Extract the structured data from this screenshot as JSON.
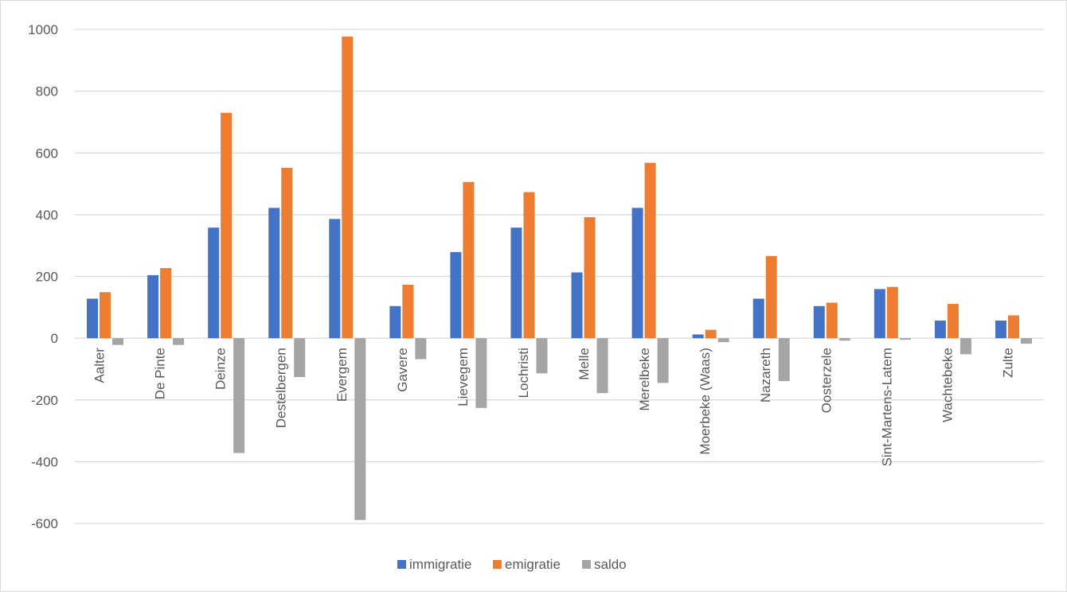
{
  "chart_data": {
    "type": "bar",
    "title": "",
    "xlabel": "",
    "ylabel": "",
    "ylim": [
      -600,
      1000
    ],
    "yticks": [
      1000,
      800,
      600,
      400,
      200,
      0,
      -200,
      -400,
      -600
    ],
    "grid": true,
    "legend_position": "bottom",
    "categories": [
      "Aalter",
      "De Pinte",
      "Deinze",
      "Destelbergen",
      "Evergem",
      "Gavere",
      "Lievegem",
      "Lochristi",
      "Melle",
      "Merelbeke",
      "Moerbeke (Waas)",
      "Nazareth",
      "Oosterzele",
      "Sint-Martens-Latem",
      "Wachtebeke",
      "Zulte"
    ],
    "series": [
      {
        "name": "immigratie",
        "color": "#4472C4",
        "values": [
          128,
          204,
          358,
          422,
          386,
          104,
          279,
          358,
          213,
          422,
          12,
          128,
          104,
          159,
          57,
          57
        ]
      },
      {
        "name": "emigratie",
        "color": "#ED7D31",
        "values": [
          149,
          227,
          730,
          552,
          977,
          173,
          506,
          473,
          392,
          568,
          27,
          266,
          115,
          166,
          111,
          74
        ]
      },
      {
        "name": "saldo",
        "color": "#A5A5A5",
        "values": [
          -22,
          -22,
          -372,
          -126,
          -589,
          -68,
          -226,
          -114,
          -178,
          -145,
          -13,
          -139,
          -8,
          -5,
          -52,
          -18
        ]
      }
    ]
  }
}
